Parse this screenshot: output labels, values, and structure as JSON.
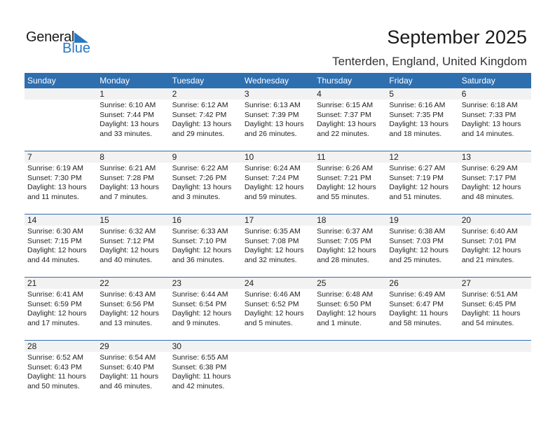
{
  "logo": {
    "line1": "General",
    "line2": "Blue"
  },
  "title": "September 2025",
  "subtitle": "Tenterden, England, United Kingdom",
  "weekdays": [
    "Sunday",
    "Monday",
    "Tuesday",
    "Wednesday",
    "Thursday",
    "Friday",
    "Saturday"
  ],
  "colors": {
    "header": "#2e6fb0",
    "dayband": "#f2f2f2",
    "logo_blue": "#2a78c2"
  },
  "weeks": [
    [
      null,
      {
        "day": "1",
        "sunrise": "Sunrise: 6:10 AM",
        "sunset": "Sunset: 7:44 PM",
        "daylight1": "Daylight: 13 hours",
        "daylight2": "and 33 minutes."
      },
      {
        "day": "2",
        "sunrise": "Sunrise: 6:12 AM",
        "sunset": "Sunset: 7:42 PM",
        "daylight1": "Daylight: 13 hours",
        "daylight2": "and 29 minutes."
      },
      {
        "day": "3",
        "sunrise": "Sunrise: 6:13 AM",
        "sunset": "Sunset: 7:39 PM",
        "daylight1": "Daylight: 13 hours",
        "daylight2": "and 26 minutes."
      },
      {
        "day": "4",
        "sunrise": "Sunrise: 6:15 AM",
        "sunset": "Sunset: 7:37 PM",
        "daylight1": "Daylight: 13 hours",
        "daylight2": "and 22 minutes."
      },
      {
        "day": "5",
        "sunrise": "Sunrise: 6:16 AM",
        "sunset": "Sunset: 7:35 PM",
        "daylight1": "Daylight: 13 hours",
        "daylight2": "and 18 minutes."
      },
      {
        "day": "6",
        "sunrise": "Sunrise: 6:18 AM",
        "sunset": "Sunset: 7:33 PM",
        "daylight1": "Daylight: 13 hours",
        "daylight2": "and 14 minutes."
      }
    ],
    [
      {
        "day": "7",
        "sunrise": "Sunrise: 6:19 AM",
        "sunset": "Sunset: 7:30 PM",
        "daylight1": "Daylight: 13 hours",
        "daylight2": "and 11 minutes."
      },
      {
        "day": "8",
        "sunrise": "Sunrise: 6:21 AM",
        "sunset": "Sunset: 7:28 PM",
        "daylight1": "Daylight: 13 hours",
        "daylight2": "and 7 minutes."
      },
      {
        "day": "9",
        "sunrise": "Sunrise: 6:22 AM",
        "sunset": "Sunset: 7:26 PM",
        "daylight1": "Daylight: 13 hours",
        "daylight2": "and 3 minutes."
      },
      {
        "day": "10",
        "sunrise": "Sunrise: 6:24 AM",
        "sunset": "Sunset: 7:24 PM",
        "daylight1": "Daylight: 12 hours",
        "daylight2": "and 59 minutes."
      },
      {
        "day": "11",
        "sunrise": "Sunrise: 6:26 AM",
        "sunset": "Sunset: 7:21 PM",
        "daylight1": "Daylight: 12 hours",
        "daylight2": "and 55 minutes."
      },
      {
        "day": "12",
        "sunrise": "Sunrise: 6:27 AM",
        "sunset": "Sunset: 7:19 PM",
        "daylight1": "Daylight: 12 hours",
        "daylight2": "and 51 minutes."
      },
      {
        "day": "13",
        "sunrise": "Sunrise: 6:29 AM",
        "sunset": "Sunset: 7:17 PM",
        "daylight1": "Daylight: 12 hours",
        "daylight2": "and 48 minutes."
      }
    ],
    [
      {
        "day": "14",
        "sunrise": "Sunrise: 6:30 AM",
        "sunset": "Sunset: 7:15 PM",
        "daylight1": "Daylight: 12 hours",
        "daylight2": "and 44 minutes."
      },
      {
        "day": "15",
        "sunrise": "Sunrise: 6:32 AM",
        "sunset": "Sunset: 7:12 PM",
        "daylight1": "Daylight: 12 hours",
        "daylight2": "and 40 minutes."
      },
      {
        "day": "16",
        "sunrise": "Sunrise: 6:33 AM",
        "sunset": "Sunset: 7:10 PM",
        "daylight1": "Daylight: 12 hours",
        "daylight2": "and 36 minutes."
      },
      {
        "day": "17",
        "sunrise": "Sunrise: 6:35 AM",
        "sunset": "Sunset: 7:08 PM",
        "daylight1": "Daylight: 12 hours",
        "daylight2": "and 32 minutes."
      },
      {
        "day": "18",
        "sunrise": "Sunrise: 6:37 AM",
        "sunset": "Sunset: 7:05 PM",
        "daylight1": "Daylight: 12 hours",
        "daylight2": "and 28 minutes."
      },
      {
        "day": "19",
        "sunrise": "Sunrise: 6:38 AM",
        "sunset": "Sunset: 7:03 PM",
        "daylight1": "Daylight: 12 hours",
        "daylight2": "and 25 minutes."
      },
      {
        "day": "20",
        "sunrise": "Sunrise: 6:40 AM",
        "sunset": "Sunset: 7:01 PM",
        "daylight1": "Daylight: 12 hours",
        "daylight2": "and 21 minutes."
      }
    ],
    [
      {
        "day": "21",
        "sunrise": "Sunrise: 6:41 AM",
        "sunset": "Sunset: 6:59 PM",
        "daylight1": "Daylight: 12 hours",
        "daylight2": "and 17 minutes."
      },
      {
        "day": "22",
        "sunrise": "Sunrise: 6:43 AM",
        "sunset": "Sunset: 6:56 PM",
        "daylight1": "Daylight: 12 hours",
        "daylight2": "and 13 minutes."
      },
      {
        "day": "23",
        "sunrise": "Sunrise: 6:44 AM",
        "sunset": "Sunset: 6:54 PM",
        "daylight1": "Daylight: 12 hours",
        "daylight2": "and 9 minutes."
      },
      {
        "day": "24",
        "sunrise": "Sunrise: 6:46 AM",
        "sunset": "Sunset: 6:52 PM",
        "daylight1": "Daylight: 12 hours",
        "daylight2": "and 5 minutes."
      },
      {
        "day": "25",
        "sunrise": "Sunrise: 6:48 AM",
        "sunset": "Sunset: 6:50 PM",
        "daylight1": "Daylight: 12 hours",
        "daylight2": "and 1 minute."
      },
      {
        "day": "26",
        "sunrise": "Sunrise: 6:49 AM",
        "sunset": "Sunset: 6:47 PM",
        "daylight1": "Daylight: 11 hours",
        "daylight2": "and 58 minutes."
      },
      {
        "day": "27",
        "sunrise": "Sunrise: 6:51 AM",
        "sunset": "Sunset: 6:45 PM",
        "daylight1": "Daylight: 11 hours",
        "daylight2": "and 54 minutes."
      }
    ],
    [
      {
        "day": "28",
        "sunrise": "Sunrise: 6:52 AM",
        "sunset": "Sunset: 6:43 PM",
        "daylight1": "Daylight: 11 hours",
        "daylight2": "and 50 minutes."
      },
      {
        "day": "29",
        "sunrise": "Sunrise: 6:54 AM",
        "sunset": "Sunset: 6:40 PM",
        "daylight1": "Daylight: 11 hours",
        "daylight2": "and 46 minutes."
      },
      {
        "day": "30",
        "sunrise": "Sunrise: 6:55 AM",
        "sunset": "Sunset: 6:38 PM",
        "daylight1": "Daylight: 11 hours",
        "daylight2": "and 42 minutes."
      },
      null,
      null,
      null,
      null
    ]
  ]
}
